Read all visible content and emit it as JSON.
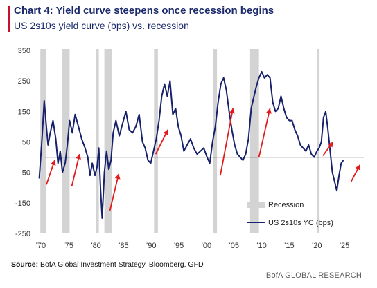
{
  "header": {
    "title": "Chart 4: Yield curve steepens once recession begins",
    "subtitle": "US 2s10s yield curve (bps) vs. recession"
  },
  "footer": {
    "source_label": "Source:",
    "source_text": "BofA Global Investment Strategy, Bloomberg, GFD",
    "brand": "BofA GLOBAL RESEARCH"
  },
  "colors": {
    "accent": "#c8102e",
    "line": "#16206b",
    "recession": "#d3d3d3",
    "arrow": "#e31a1c",
    "zero_line": "#000000"
  },
  "chart_data": {
    "type": "line",
    "x_tick_labels": [
      "'70",
      "'75",
      "'80",
      "'85",
      "'90",
      "'95",
      "'00",
      "'05",
      "'10",
      "'15",
      "'20",
      "'25"
    ],
    "x_ticks": [
      1970,
      1975,
      1980,
      1985,
      1990,
      1995,
      2000,
      2005,
      2010,
      2015,
      2020,
      2025
    ],
    "xlim": [
      1969.5,
      2028.5
    ],
    "y_ticks": [
      350,
      250,
      150,
      50,
      -50,
      -150,
      -250
    ],
    "ylim": [
      -250,
      350
    ],
    "series": [
      {
        "name": "US 2s10s YC (bps)",
        "x": [
          1969.7,
          1970.2,
          1970.6,
          1971.0,
          1971.3,
          1971.7,
          1972.2,
          1972.7,
          1973.1,
          1973.5,
          1973.9,
          1974.4,
          1974.8,
          1975.2,
          1975.7,
          1976.2,
          1976.8,
          1977.4,
          1978.0,
          1978.5,
          1978.9,
          1979.3,
          1979.8,
          1980.2,
          1980.5,
          1980.8,
          1981.1,
          1981.5,
          1981.9,
          1982.3,
          1982.7,
          1983.1,
          1983.6,
          1984.2,
          1984.8,
          1985.4,
          1986.0,
          1986.6,
          1987.2,
          1987.8,
          1988.4,
          1988.9,
          1989.4,
          1989.9,
          1990.4,
          1990.9,
          1991.4,
          1991.9,
          1992.4,
          1992.9,
          1993.4,
          1993.9,
          1994.4,
          1994.9,
          1995.4,
          1995.9,
          1996.5,
          1997.1,
          1997.7,
          1998.3,
          1998.9,
          1999.5,
          2000.1,
          2000.6,
          2001.1,
          2001.6,
          2002.1,
          2002.6,
          2003.1,
          2003.6,
          2004.1,
          2004.6,
          2005.1,
          2005.6,
          2006.1,
          2006.6,
          2007.1,
          2007.6,
          2008.1,
          2008.6,
          2009.0,
          2009.5,
          2010.0,
          2010.5,
          2011.0,
          2011.5,
          2012.0,
          2012.5,
          2013.0,
          2013.5,
          2014.0,
          2014.5,
          2015.0,
          2015.5,
          2016.0,
          2016.5,
          2017.0,
          2017.5,
          2018.0,
          2018.5,
          2019.0,
          2019.5,
          2020.0,
          2020.4,
          2020.8,
          2021.2,
          2021.6,
          2022.0,
          2022.4,
          2022.8,
          2023.2,
          2023.6,
          2024.0,
          2024.4,
          2024.8
        ],
        "y": [
          -70,
          60,
          185,
          100,
          40,
          80,
          120,
          60,
          -20,
          20,
          -50,
          -20,
          40,
          120,
          80,
          140,
          100,
          60,
          30,
          0,
          -60,
          -20,
          -60,
          -30,
          30,
          -100,
          -200,
          -50,
          20,
          -40,
          -10,
          80,
          120,
          70,
          110,
          150,
          90,
          80,
          100,
          140,
          50,
          30,
          -10,
          -20,
          20,
          60,
          120,
          200,
          240,
          200,
          250,
          140,
          160,
          100,
          70,
          20,
          40,
          60,
          30,
          10,
          20,
          30,
          0,
          -20,
          50,
          100,
          180,
          240,
          260,
          220,
          150,
          90,
          40,
          10,
          0,
          -10,
          10,
          60,
          160,
          200,
          230,
          260,
          280,
          260,
          270,
          260,
          180,
          150,
          160,
          200,
          160,
          130,
          120,
          120,
          90,
          70,
          40,
          30,
          20,
          40,
          10,
          0,
          20,
          30,
          50,
          130,
          150,
          90,
          20,
          -50,
          -80,
          -110,
          -60,
          -20,
          -10
        ],
        "color": "#16206b"
      }
    ],
    "recessions": [
      [
        1969.9,
        1970.9
      ],
      [
        1973.9,
        1975.2
      ],
      [
        1980.0,
        1980.5
      ],
      [
        1981.5,
        1982.9
      ],
      [
        1990.5,
        1991.2
      ],
      [
        2001.2,
        2001.9
      ],
      [
        2007.9,
        2009.5
      ],
      [
        2020.1,
        2020.4
      ]
    ],
    "legend": {
      "placement": "bottom-right",
      "recession_label": "Recession",
      "line_label": "US 2s10s YC (bps)"
    },
    "arrows": [
      [
        [
          1971.0,
          -90
        ],
        [
          1972.5,
          -10
        ]
      ],
      [
        [
          1975.6,
          -95
        ],
        [
          1977.0,
          10
        ]
      ],
      [
        [
          1982.5,
          -175
        ],
        [
          1984.1,
          -55
        ]
      ],
      [
        [
          1990.8,
          10
        ],
        [
          1993.0,
          90
        ]
      ],
      [
        [
          2002.5,
          -60
        ],
        [
          2004.8,
          160
        ]
      ],
      [
        [
          2009.5,
          0
        ],
        [
          2011.5,
          160
        ]
      ],
      [
        [
          2021.1,
          5
        ],
        [
          2022.9,
          50
        ]
      ],
      [
        [
          2026.2,
          -80
        ],
        [
          2027.8,
          -25
        ]
      ]
    ],
    "zero_line": 0,
    "grid": false
  }
}
